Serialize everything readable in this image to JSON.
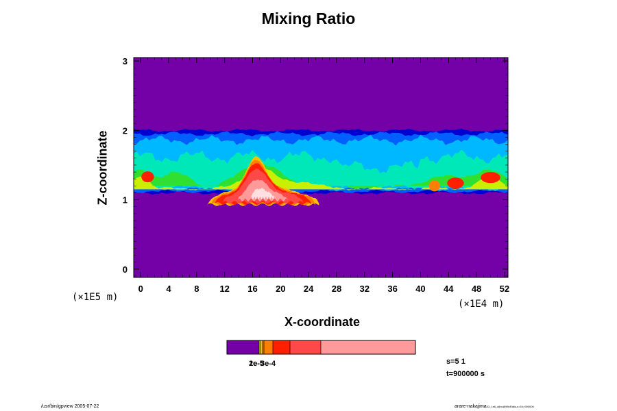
{
  "chart_data": {
    "type": "heatmap",
    "title": "Mixing Ratio",
    "xlabel": "X-coordinate",
    "ylabel": "Z-coordinate",
    "x_ticks": [
      "0",
      "4",
      "8",
      "12",
      "16",
      "20",
      "24",
      "28",
      "32",
      "36",
      "40",
      "44",
      "48",
      "52"
    ],
    "y_ticks": [
      "0",
      "1",
      "2",
      "3"
    ],
    "x_unit": "(×1E4 m)",
    "y_unit": "(×1E5 m)",
    "xlim": [
      -1,
      52.5
    ],
    "ylim": [
      -0.12,
      3.05
    ],
    "colorbar_labels": [
      "1e-5",
      "2e-5",
      "3e-4"
    ],
    "colors": [
      "#7400a8",
      "#0000d0",
      "#0060ff",
      "#00b8ff",
      "#00e8b8",
      "#30e030",
      "#c8f000",
      "#ffc000",
      "#ff8000",
      "#ff2000",
      "#ff4848",
      "#ff9a9a",
      "#ffe0e0"
    ],
    "band_top_z": 2.0,
    "band_bottom_z": 1.1,
    "blob": {
      "x_range": [
        9.5,
        25.5
      ],
      "z_range": [
        0.93,
        1.62
      ],
      "peak_x": 16.5
    }
  },
  "annotations": {
    "state": "s=5 1",
    "time": "t=900000 s",
    "footer_left": "/usr/bin/gpview 2005-07-22",
    "footer_right": "arare-nakajima",
    "footer_right_small": "03_1e6_ailnc@MixRatio,s=5,t=900000"
  }
}
